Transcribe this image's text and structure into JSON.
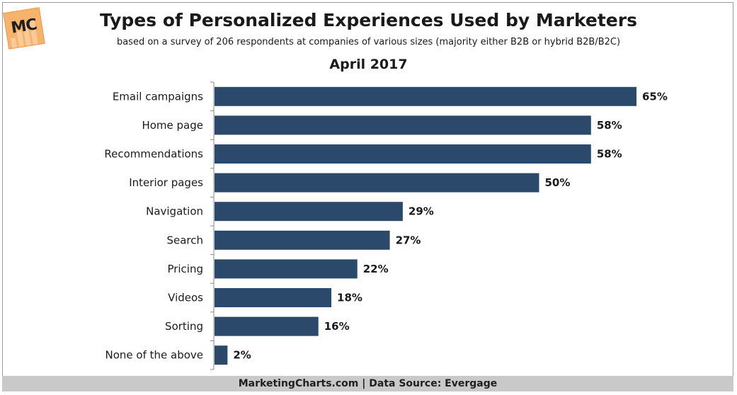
{
  "header": {
    "logo_text": "MC",
    "title": "Types of Personalized Experiences Used by Marketers",
    "subtitle": "based on a survey of 206 respondents at companies of various sizes (majority either B2B or hybrid B2B/B2C)",
    "period": "April 2017"
  },
  "chart_data": {
    "type": "bar",
    "orientation": "horizontal",
    "categories": [
      "Email campaigns",
      "Home page",
      "Recommendations",
      "Interior pages",
      "Navigation",
      "Search",
      "Pricing",
      "Videos",
      "Sorting",
      "None of the above"
    ],
    "values": [
      65,
      58,
      58,
      50,
      29,
      27,
      22,
      18,
      16,
      2
    ],
    "value_labels": [
      "65%",
      "58%",
      "58%",
      "50%",
      "29%",
      "27%",
      "22%",
      "18%",
      "16%",
      "2%"
    ],
    "bar_color": "#2b4a6b",
    "xlim": [
      0,
      65
    ],
    "grid": false,
    "legend": "none"
  },
  "footer": {
    "text": "MarketingCharts.com | Data Source: Evergage"
  }
}
